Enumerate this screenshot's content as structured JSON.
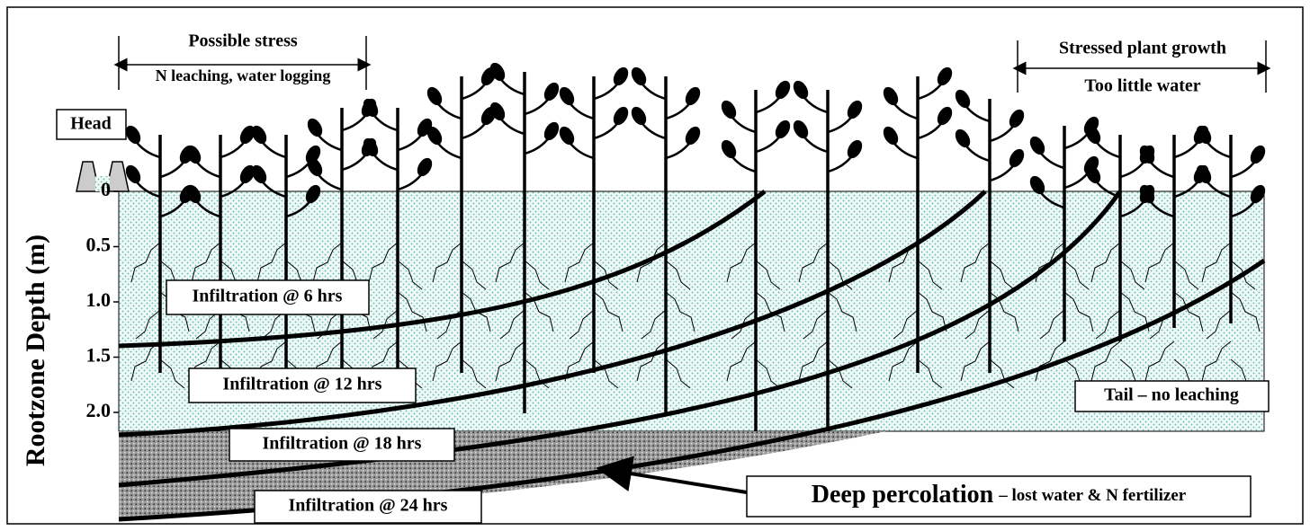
{
  "annotations": {
    "head": "Head",
    "possible_stress": "Possible stress",
    "head_issues": "N leaching, water logging",
    "stressed_growth": "Stressed plant growth",
    "tail_issues": "Too little water",
    "tail": "Tail – no leaching"
  },
  "axis": {
    "label": "Rootzone Depth (m)",
    "ticks": [
      "0",
      "0.5",
      "1.0",
      "1.5",
      "2.0"
    ]
  },
  "infiltration": [
    "Infiltration @ 6 hrs",
    "Infiltration @ 12 hrs",
    "Infiltration @ 18 hrs",
    "Infiltration @ 24 hrs"
  ],
  "deep_percolation": {
    "title": "Deep percolation",
    "detail": "– lost water & N fertilizer"
  }
}
